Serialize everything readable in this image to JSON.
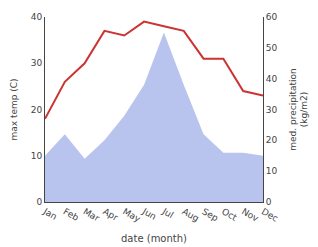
{
  "chart_data": {
    "type": "line",
    "categories": [
      "Jan",
      "Feb",
      "Mar",
      "Apr",
      "May",
      "Jun",
      "Jul",
      "Aug",
      "Sep",
      "Oct",
      "Nov",
      "Dec"
    ],
    "xlabel": "date (month)",
    "ylabel": "max temp (C)",
    "y2label": "med. precipitation\n(kg/m2)",
    "series": [
      {
        "type": "line",
        "color": "#cc3333",
        "values": [
          18,
          26,
          30,
          37,
          36,
          39,
          38,
          37,
          31,
          31,
          24,
          23
        ]
      },
      {
        "type": "area",
        "axis": "y2",
        "color": "#b8c4ee",
        "values": [
          15,
          22,
          14,
          20,
          28,
          38,
          55,
          38,
          22,
          16,
          16,
          15
        ]
      }
    ],
    "ylim": [
      0,
      40
    ],
    "yticks": [
      0,
      10,
      20,
      30,
      40
    ],
    "y2lim": [
      0,
      60
    ],
    "y2ticks": [
      0,
      10,
      20,
      30,
      40,
      50,
      60
    ],
    "grid": false
  }
}
